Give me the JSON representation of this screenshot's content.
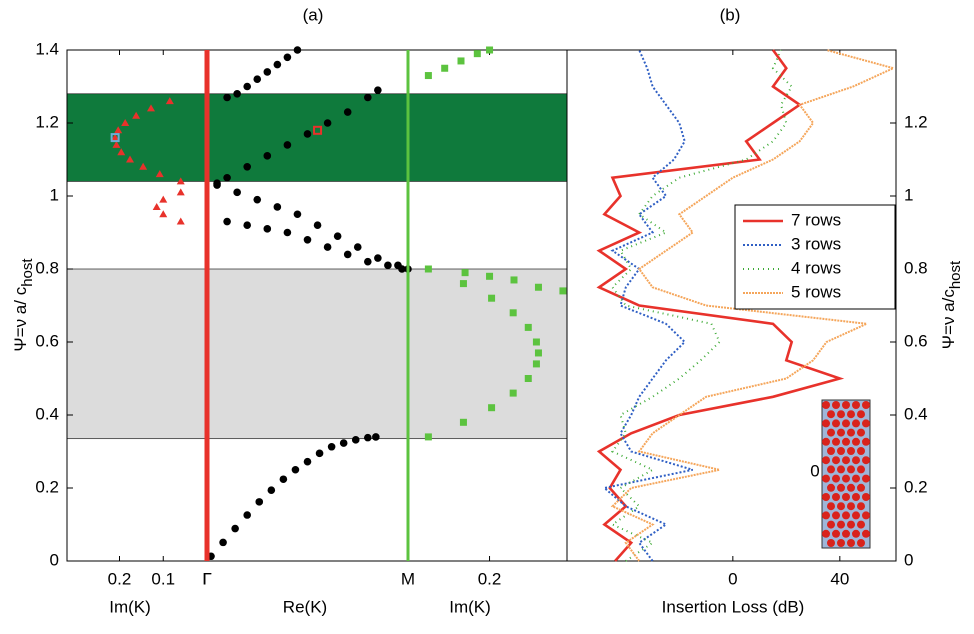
{
  "chart_data": [
    {
      "type": "scatter",
      "title": "(a)",
      "xlabel": "Im(K)",
      "ylabel": "Ψ=ν a/ c",
      "ylabel_sub": "host",
      "xlim": [
        0.32,
        0
      ],
      "xticks": [
        0.2,
        0.1,
        {
          "value": 0,
          "label": "Γ"
        }
      ],
      "ylim": [
        0,
        1.4
      ],
      "yticks": [
        0,
        0.2,
        0.4,
        0.6,
        0.8,
        1,
        1.2,
        1.4
      ],
      "series": [
        {
          "color": "#e8322b",
          "marker": "triangle",
          "x": [
            0.06,
            0.108,
            0.146,
            0.176,
            0.196,
            0.207,
            0.21,
            0.203,
            0.187,
            0.162,
            0.128,
            0.085,
            0.06,
            0.1,
            0.115,
            0.1,
            0.06
          ],
          "values": [
            1.04,
            1.06,
            1.08,
            1.1,
            1.12,
            1.14,
            1.16,
            1.18,
            1.2,
            1.22,
            1.24,
            1.26,
            0.93,
            0.95,
            0.97,
            0.99,
            1.01
          ]
        },
        {
          "color": "#6aaed6",
          "marker": "square",
          "x": [
            0.21
          ],
          "values": [
            1.16
          ]
        }
      ]
    },
    {
      "type": "scatter",
      "xlabel": "Re(K)",
      "xlim": [
        0,
        1
      ],
      "xticks": [
        {
          "value": 0,
          "label": "Γ"
        },
        {
          "value": 1,
          "label": "M"
        }
      ],
      "ylim": [
        0,
        1.4
      ],
      "bands": [
        {
          "ylim": [
            1.04,
            1.28
          ],
          "color": "#0f7a3c"
        },
        {
          "ylim": [
            0.335,
            0.8
          ],
          "color": "#dcdcdc"
        }
      ],
      "series": [
        {
          "color": "#000000",
          "marker": "circle",
          "x": [
            0.02,
            0.08,
            0.14,
            0.2,
            0.26,
            0.32,
            0.38,
            0.44,
            0.5,
            0.56,
            0.62,
            0.68,
            0.74,
            0.8,
            0.84,
            0.05,
            0.1,
            0.2,
            0.3,
            0.4,
            0.5,
            0.6,
            0.7,
            0.8,
            0.85,
            0.1,
            0.15,
            0.2,
            0.25,
            0.3,
            0.35,
            0.4,
            0.45,
            0.05,
            0.15,
            0.25,
            0.35,
            0.45,
            0.55,
            0.65,
            0.75,
            0.85,
            0.95,
            1.0,
            0.1,
            0.2,
            0.3,
            0.4,
            0.5,
            0.6,
            0.7,
            0.8,
            0.9,
            0.97
          ],
          "values": [
            0.013,
            0.051,
            0.089,
            0.126,
            0.162,
            0.194,
            0.224,
            0.25,
            0.272,
            0.295,
            0.313,
            0.323,
            0.332,
            0.338,
            0.34,
            1.035,
            1.05,
            1.08,
            1.11,
            1.14,
            1.17,
            1.2,
            1.23,
            1.27,
            1.29,
            1.27,
            1.28,
            1.3,
            1.32,
            1.34,
            1.36,
            1.38,
            1.4,
            1.03,
            1.01,
            0.99,
            0.97,
            0.95,
            0.92,
            0.89,
            0.86,
            0.83,
            0.81,
            0.8,
            0.93,
            0.92,
            0.91,
            0.9,
            0.88,
            0.86,
            0.84,
            0.82,
            0.81,
            0.8
          ]
        },
        {
          "color": "#e8322b",
          "marker": "square",
          "x": [
            0.55
          ],
          "values": [
            1.18
          ]
        }
      ]
    },
    {
      "type": "scatter",
      "xlabel": "Im(K)",
      "xlim": [
        0,
        0.39
      ],
      "xticks": [
        0.2
      ],
      "ylim": [
        0,
        1.4
      ],
      "series": [
        {
          "color": "#5cc33f",
          "marker": "square",
          "x": [
            0.05,
            0.136,
            0.205,
            0.258,
            0.295,
            0.315,
            0.32,
            0.315,
            0.295,
            0.258,
            0.205,
            0.136,
            0.05,
            0.14,
            0.2,
            0.26,
            0.32,
            0.38,
            0.05,
            0.09,
            0.13,
            0.17,
            0.2
          ],
          "values": [
            0.34,
            0.38,
            0.42,
            0.46,
            0.5,
            0.54,
            0.57,
            0.6,
            0.64,
            0.68,
            0.72,
            0.76,
            0.8,
            0.79,
            0.78,
            0.77,
            0.75,
            0.74,
            1.33,
            1.35,
            1.37,
            1.39,
            1.4
          ]
        }
      ]
    },
    {
      "type": "line",
      "title": "(b)",
      "xlabel": "Insertion Loss (dB)",
      "ylabel": "Ψ=ν a/c",
      "ylabel_sub": "host",
      "xlim": [
        -62,
        61
      ],
      "xticks": [
        0,
        40
      ],
      "ylim": [
        0,
        1.4
      ],
      "yticks": [
        0,
        0.2,
        0.4,
        0.6,
        0.8,
        1,
        1.2
      ],
      "inset_label": "0",
      "y": [
        0,
        0.05,
        0.1,
        0.15,
        0.2,
        0.25,
        0.3,
        0.35,
        0.4,
        0.45,
        0.5,
        0.55,
        0.6,
        0.65,
        0.7,
        0.75,
        0.8,
        0.85,
        0.9,
        0.95,
        1,
        1.05,
        1.1,
        1.15,
        1.2,
        1.25,
        1.3,
        1.35,
        1.4
      ],
      "series": [
        {
          "name": "7 rows",
          "color": "#e8322b",
          "dash": "none",
          "values": [
            -44,
            -38,
            -48,
            -40,
            -46,
            -42,
            -50,
            -38,
            -20,
            15,
            40,
            20,
            22,
            15,
            -35,
            -50,
            -40,
            -50,
            -35,
            -48,
            -42,
            -45,
            10,
            5,
            15,
            25,
            15,
            20,
            15
          ]
        },
        {
          "name": "3 rows",
          "color": "#2f5fc4",
          "dash": "2 2",
          "values": [
            -30,
            -35,
            -25,
            -40,
            -48,
            -15,
            -38,
            -42,
            -38,
            -35,
            -30,
            -25,
            -18,
            -25,
            -42,
            -40,
            -35,
            -45,
            -30,
            -35,
            -25,
            -30,
            -22,
            -18,
            -20,
            -25,
            -30,
            -32,
            -35
          ]
        },
        {
          "name": "4 rows",
          "color": "#3daa35",
          "dash": "1 4",
          "values": [
            -40,
            -30,
            -45,
            -35,
            -42,
            -30,
            -45,
            -40,
            -42,
            -30,
            -20,
            -12,
            -5,
            -8,
            -40,
            -45,
            -38,
            -42,
            -25,
            -35,
            -30,
            -20,
            5,
            15,
            20,
            18,
            22,
            15,
            18
          ]
        },
        {
          "name": "5 rows",
          "color": "#f5a65b",
          "dash": "2 1",
          "values": [
            -35,
            -40,
            -30,
            -45,
            -38,
            -5,
            -35,
            -30,
            -20,
            -10,
            20,
            30,
            35,
            50,
            -10,
            -30,
            -35,
            -25,
            -15,
            -20,
            -10,
            0,
            15,
            25,
            30,
            25,
            45,
            60,
            35
          ]
        }
      ]
    }
  ]
}
